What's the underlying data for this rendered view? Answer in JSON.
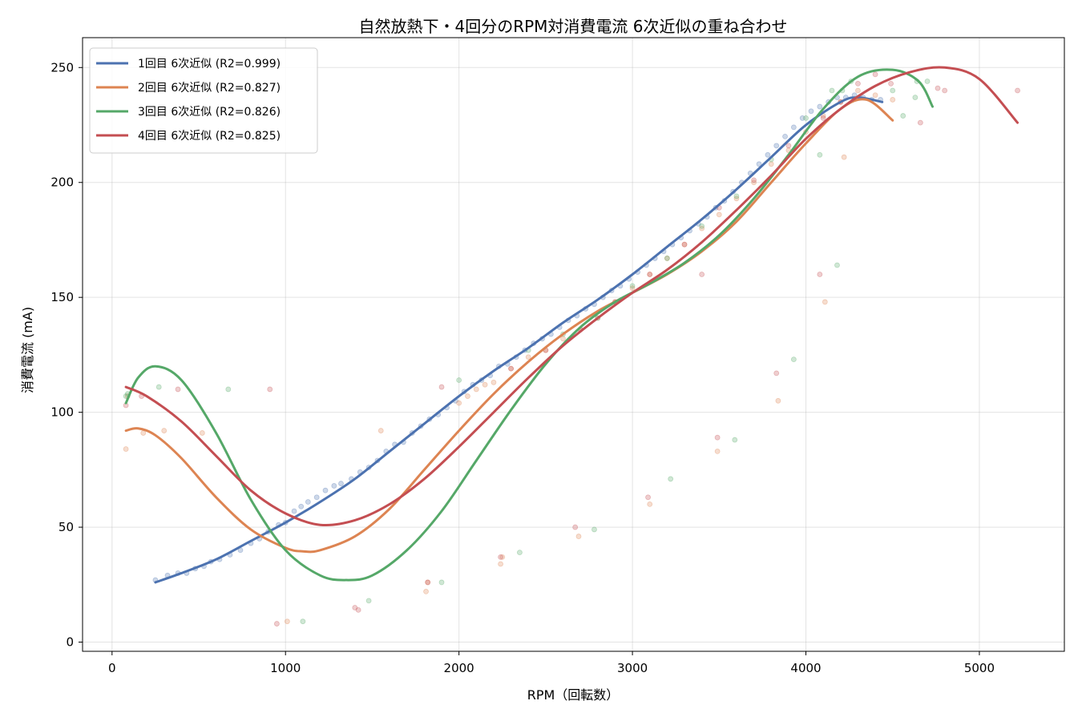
{
  "chart_data": {
    "type": "scatter",
    "title": "自然放熱下・4回分のRPM対消費電流 6次近似の重ね合わせ",
    "xlabel": "RPM（回転数）",
    "ylabel": "消費電流 (mA)",
    "xlim": [
      -170,
      5490
    ],
    "ylim": [
      -4,
      263
    ],
    "x_ticks": [
      0,
      1000,
      2000,
      3000,
      4000,
      5000
    ],
    "y_ticks": [
      0,
      50,
      100,
      150,
      200,
      250
    ],
    "x_tick_labels": [
      "0",
      "1000",
      "2000",
      "3000",
      "4000",
      "5000"
    ],
    "y_tick_labels": [
      "0",
      "50",
      "100",
      "150",
      "200",
      "250"
    ],
    "grid": true,
    "legend_position": "top-left",
    "series": [
      {
        "name": "1回目 6次近似 (R2=0.999)",
        "color": "#4c72b0",
        "fit_x": [
          250,
          400,
          600,
          800,
          1000,
          1200,
          1400,
          1600,
          1800,
          2000,
          2200,
          2400,
          2600,
          2800,
          3000,
          3200,
          3400,
          3600,
          3800,
          4000,
          4200,
          4300,
          4440
        ],
        "fit_y": [
          26,
          30,
          36,
          44,
          52,
          61,
          71,
          83,
          95,
          107,
          118,
          128,
          139,
          149,
          160,
          172,
          184,
          197,
          211,
          225,
          235,
          237,
          235
        ],
        "points": [
          [
            250,
            27
          ],
          [
            320,
            29
          ],
          [
            380,
            30
          ],
          [
            430,
            30
          ],
          [
            480,
            32
          ],
          [
            530,
            33
          ],
          [
            570,
            35
          ],
          [
            620,
            36
          ],
          [
            680,
            38
          ],
          [
            740,
            40
          ],
          [
            800,
            43
          ],
          [
            850,
            45
          ],
          [
            900,
            48
          ],
          [
            960,
            51
          ],
          [
            1000,
            52
          ],
          [
            1050,
            57
          ],
          [
            1090,
            59
          ],
          [
            1130,
            61
          ],
          [
            1180,
            63
          ],
          [
            1230,
            66
          ],
          [
            1280,
            68
          ],
          [
            1320,
            69
          ],
          [
            1380,
            71
          ],
          [
            1430,
            74
          ],
          [
            1480,
            76
          ],
          [
            1530,
            79
          ],
          [
            1580,
            83
          ],
          [
            1630,
            86
          ],
          [
            1680,
            87
          ],
          [
            1730,
            91
          ],
          [
            1780,
            94
          ],
          [
            1830,
            97
          ],
          [
            1880,
            99
          ],
          [
            1930,
            102
          ],
          [
            1980,
            105
          ],
          [
            2030,
            109
          ],
          [
            2080,
            112
          ],
          [
            2130,
            114
          ],
          [
            2180,
            116
          ],
          [
            2230,
            120
          ],
          [
            2280,
            121
          ],
          [
            2330,
            124
          ],
          [
            2380,
            127
          ],
          [
            2430,
            130
          ],
          [
            2480,
            132
          ],
          [
            2530,
            134
          ],
          [
            2580,
            137
          ],
          [
            2630,
            140
          ],
          [
            2680,
            142
          ],
          [
            2730,
            145
          ],
          [
            2780,
            147
          ],
          [
            2830,
            150
          ],
          [
            2880,
            153
          ],
          [
            2930,
            155
          ],
          [
            2980,
            158
          ],
          [
            3030,
            161
          ],
          [
            3080,
            164
          ],
          [
            3130,
            167
          ],
          [
            3180,
            170
          ],
          [
            3230,
            173
          ],
          [
            3280,
            176
          ],
          [
            3330,
            179
          ],
          [
            3380,
            182
          ],
          [
            3430,
            185
          ],
          [
            3480,
            189
          ],
          [
            3530,
            192
          ],
          [
            3580,
            196
          ],
          [
            3630,
            200
          ],
          [
            3680,
            204
          ],
          [
            3730,
            208
          ],
          [
            3780,
            212
          ],
          [
            3830,
            216
          ],
          [
            3880,
            220
          ],
          [
            3930,
            224
          ],
          [
            3980,
            228
          ],
          [
            4030,
            231
          ],
          [
            4080,
            233
          ],
          [
            4130,
            235
          ],
          [
            4180,
            237
          ],
          [
            4230,
            237
          ],
          [
            4280,
            238
          ],
          [
            4330,
            237
          ],
          [
            4380,
            236
          ],
          [
            4430,
            236
          ]
        ]
      },
      {
        "name": "2回目 6次近似 (R2=0.827)",
        "color": "#dd8452",
        "fit_x": [
          80,
          150,
          250,
          400,
          600,
          800,
          1000,
          1100,
          1200,
          1400,
          1600,
          1800,
          2000,
          2200,
          2400,
          2600,
          2800,
          3000,
          3200,
          3400,
          3600,
          3800,
          4000,
          4200,
          4350,
          4500
        ],
        "fit_y": [
          92,
          93,
          90,
          80,
          63,
          49,
          41,
          39.5,
          40,
          46,
          58,
          75,
          92,
          108,
          122,
          134,
          144,
          152,
          160,
          170,
          183,
          200,
          217,
          232,
          236,
          227
        ],
        "points": [
          [
            80,
            84
          ],
          [
            90,
            107
          ],
          [
            180,
            91
          ],
          [
            300,
            92
          ],
          [
            520,
            91
          ],
          [
            1010,
            9
          ],
          [
            1550,
            92
          ],
          [
            1810,
            22
          ],
          [
            1820,
            26
          ],
          [
            2240,
            34
          ],
          [
            2250,
            37
          ],
          [
            2690,
            46
          ],
          [
            3100,
            60
          ],
          [
            3490,
            83
          ],
          [
            3840,
            105
          ],
          [
            4110,
            148
          ],
          [
            4220,
            211
          ],
          [
            2000,
            104
          ],
          [
            2050,
            107
          ],
          [
            2100,
            110
          ],
          [
            2150,
            112
          ],
          [
            2200,
            113
          ],
          [
            2300,
            119
          ],
          [
            2400,
            124
          ],
          [
            2500,
            127
          ],
          [
            2600,
            132
          ],
          [
            2700,
            136
          ],
          [
            2800,
            141
          ],
          [
            2900,
            148
          ],
          [
            3000,
            154
          ],
          [
            3100,
            160
          ],
          [
            3200,
            167
          ],
          [
            3300,
            173
          ],
          [
            3400,
            180
          ],
          [
            3500,
            186
          ],
          [
            3600,
            193
          ],
          [
            3700,
            200
          ],
          [
            3800,
            208
          ],
          [
            3900,
            214
          ],
          [
            4000,
            222
          ],
          [
            4100,
            229
          ],
          [
            4200,
            235
          ],
          [
            4300,
            240
          ],
          [
            4400,
            238
          ],
          [
            4500,
            236
          ]
        ]
      },
      {
        "name": "3回目 6次近似 (R2=0.826)",
        "color": "#55a868",
        "fit_x": [
          80,
          150,
          250,
          400,
          600,
          800,
          1000,
          1200,
          1350,
          1500,
          1700,
          1900,
          2100,
          2300,
          2500,
          2700,
          2900,
          3100,
          3300,
          3500,
          3700,
          3900,
          4100,
          4300,
          4500,
          4650,
          4730
        ],
        "fit_y": [
          104,
          115,
          120,
          114,
          91,
          62,
          40,
          29,
          27,
          29,
          40,
          57,
          79,
          101,
          121,
          137,
          148,
          156,
          165,
          177,
          193,
          212,
          232,
          246,
          249,
          244,
          233
        ],
        "points": [
          [
            80,
            107
          ],
          [
            90,
            108
          ],
          [
            270,
            111
          ],
          [
            670,
            110
          ],
          [
            1100,
            9
          ],
          [
            1480,
            18
          ],
          [
            1900,
            26
          ],
          [
            2000,
            114
          ],
          [
            2350,
            39
          ],
          [
            2780,
            49
          ],
          [
            3220,
            71
          ],
          [
            3590,
            88
          ],
          [
            3930,
            123
          ],
          [
            4180,
            164
          ],
          [
            4080,
            212
          ],
          [
            4210,
            240
          ],
          [
            4260,
            244
          ],
          [
            4500,
            240
          ],
          [
            4560,
            229
          ],
          [
            4640,
            244
          ],
          [
            4700,
            244
          ],
          [
            4630,
            237
          ],
          [
            2400,
            127
          ],
          [
            2600,
            134
          ],
          [
            2800,
            141
          ],
          [
            3000,
            155
          ],
          [
            3200,
            167
          ],
          [
            3400,
            181
          ],
          [
            3600,
            194
          ],
          [
            3800,
            210
          ],
          [
            4000,
            228
          ],
          [
            4150,
            240
          ]
        ]
      },
      {
        "name": "4回目 6次近似 (R2=0.825)",
        "color": "#c44e52",
        "fit_x": [
          80,
          200,
          400,
          600,
          800,
          1000,
          1200,
          1400,
          1600,
          1800,
          2000,
          2200,
          2400,
          2600,
          2800,
          3000,
          3200,
          3400,
          3600,
          3800,
          4000,
          4200,
          4400,
          4600,
          4800,
          5000,
          5220
        ],
        "fit_y": [
          111,
          107,
          96,
          81,
          66,
          56,
          51,
          53,
          60,
          71,
          85,
          100,
          115,
          129,
          141,
          152,
          162,
          174,
          188,
          203,
          219,
          232,
          242,
          248,
          250,
          245,
          226
        ],
        "points": [
          [
            80,
            103
          ],
          [
            170,
            107
          ],
          [
            380,
            110
          ],
          [
            910,
            110
          ],
          [
            950,
            8
          ],
          [
            1400,
            15
          ],
          [
            1420,
            14
          ],
          [
            1820,
            26
          ],
          [
            1900,
            111
          ],
          [
            2240,
            37
          ],
          [
            2670,
            50
          ],
          [
            3090,
            63
          ],
          [
            3400,
            160
          ],
          [
            3490,
            89
          ],
          [
            3830,
            117
          ],
          [
            4080,
            160
          ],
          [
            4400,
            247
          ],
          [
            4490,
            243
          ],
          [
            4660,
            226
          ],
          [
            4760,
            241
          ],
          [
            4800,
            240
          ],
          [
            5220,
            240
          ],
          [
            2300,
            119
          ],
          [
            2500,
            127
          ],
          [
            2700,
            136
          ],
          [
            2900,
            148
          ],
          [
            3100,
            160
          ],
          [
            3300,
            173
          ],
          [
            3500,
            189
          ],
          [
            3700,
            201
          ],
          [
            3900,
            216
          ],
          [
            4100,
            228
          ],
          [
            4200,
            235
          ],
          [
            4300,
            243
          ]
        ]
      }
    ]
  }
}
